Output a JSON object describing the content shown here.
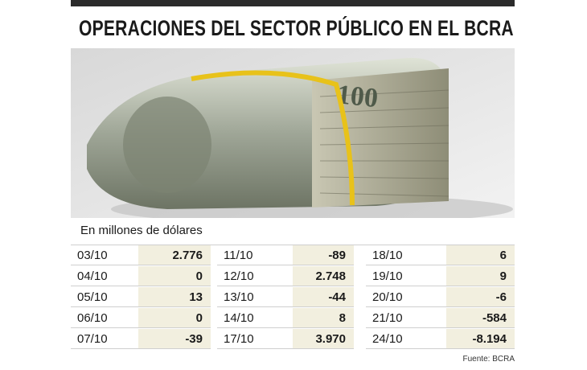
{
  "header": {
    "title": "OPERACIONES DEL SECTOR PÚBLICO EN EL BCRA"
  },
  "subtitle": "En millones de dólares",
  "table": {
    "groups": [
      {
        "rows": [
          [
            "03/10",
            "2.776"
          ],
          [
            "04/10",
            "0"
          ],
          [
            "05/10",
            "13"
          ],
          [
            "06/10",
            "0"
          ],
          [
            "07/10",
            "-39"
          ]
        ]
      },
      {
        "rows": [
          [
            "11/10",
            "-89"
          ],
          [
            "12/10",
            "2.748"
          ],
          [
            "13/10",
            "-44"
          ],
          [
            "14/10",
            "8"
          ],
          [
            "17/10",
            "3.970"
          ]
        ]
      },
      {
        "rows": [
          [
            "18/10",
            "6"
          ],
          [
            "19/10",
            "9"
          ],
          [
            "20/10",
            "-6"
          ],
          [
            "21/10",
            "-584"
          ],
          [
            "24/10",
            "-8.194"
          ]
        ]
      }
    ]
  },
  "source": "Fuente: BCRA"
}
